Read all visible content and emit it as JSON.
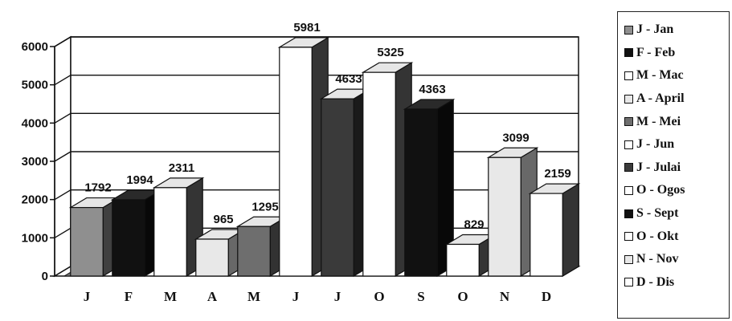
{
  "chart_data": {
    "type": "bar",
    "categories": [
      "J",
      "F",
      "M",
      "A",
      "M",
      "J",
      "J",
      "O",
      "S",
      "O",
      "N",
      "D"
    ],
    "values": [
      1792,
      1994,
      2311,
      965,
      1295,
      5981,
      4633,
      5325,
      4363,
      829,
      3099,
      2159
    ],
    "value_labels": [
      "1792",
      "1994",
      "2311",
      "965",
      "1295",
      "5981",
      "4633",
      "5325",
      "4363",
      "829",
      "3099",
      "2159"
    ],
    "title": "",
    "xlabel": "",
    "ylabel": "",
    "ylim": [
      0,
      6000
    ],
    "yticks": [
      "0",
      "1000",
      "2000",
      "3000",
      "4000",
      "5000",
      "6000"
    ],
    "grid": true,
    "legend_position": "right",
    "legend": [
      {
        "label": "J - Jan",
        "color": "#8f8f8f"
      },
      {
        "label": "F - Feb",
        "color": "#111111"
      },
      {
        "label": "M - Mac",
        "color": "#ffffff"
      },
      {
        "label": "A - April",
        "color": "#e8e8e8"
      },
      {
        "label": "M - Mei",
        "color": "#6e6e6e"
      },
      {
        "label": "J - Jun",
        "color": "#ffffff"
      },
      {
        "label": "J - Julai",
        "color": "#3a3a3a"
      },
      {
        "label": "O - Ogos",
        "color": "#ffffff"
      },
      {
        "label": "S - Sept",
        "color": "#111111"
      },
      {
        "label": "O - Okt",
        "color": "#ffffff"
      },
      {
        "label": "N - Nov",
        "color": "#e8e8e8"
      },
      {
        "label": "D - Dis",
        "color": "#ffffff"
      }
    ]
  }
}
